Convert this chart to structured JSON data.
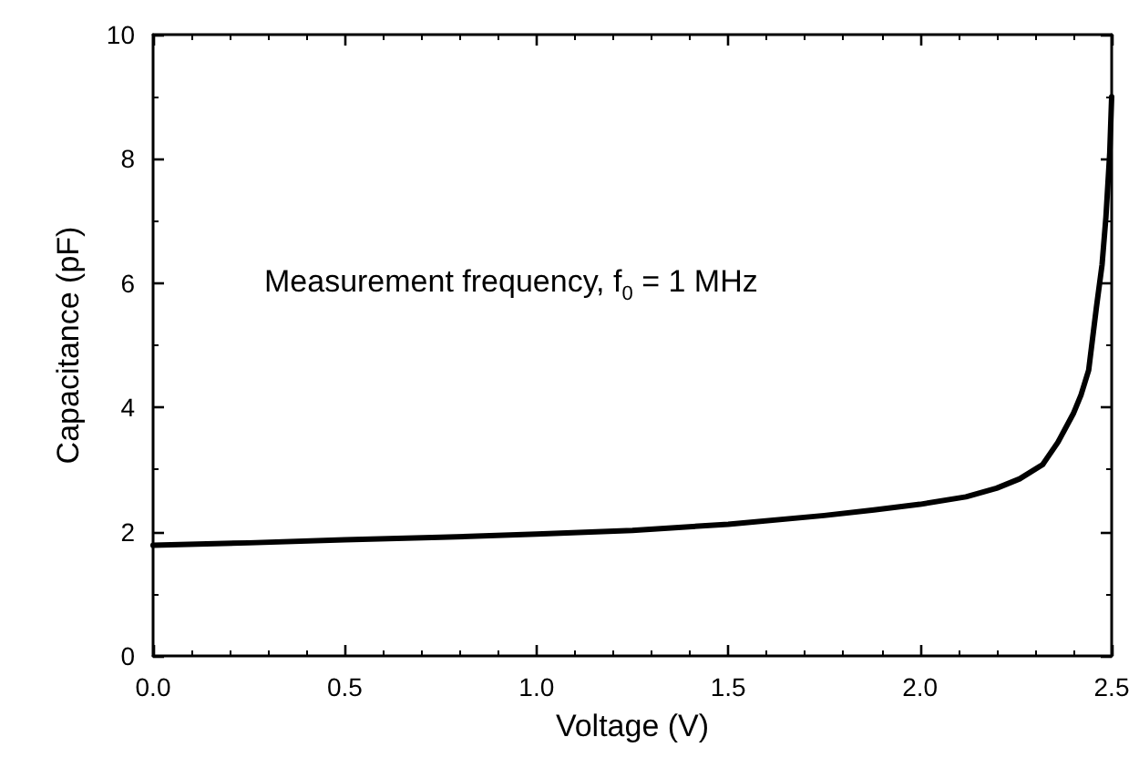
{
  "chart_data": {
    "type": "line",
    "xlabel": "Voltage (V)",
    "ylabel": "Capacitance (pF)",
    "annotations": [
      "Measurement frequency, f$_{0}$ = 1 MHz"
    ],
    "series": [
      {
        "color": "#000000",
        "x": [
          0,
          0.25,
          0.5,
          0.75,
          1.0,
          1.25,
          1.5,
          1.75,
          1.88,
          2.0,
          2.12,
          2.2,
          2.26,
          2.32,
          2.36,
          2.4,
          2.42,
          2.44,
          2.46,
          2.475,
          2.485,
          2.495,
          2.5
        ],
        "values": [
          1.78,
          1.82,
          1.87,
          1.91,
          1.96,
          2.02,
          2.12,
          2.26,
          2.35,
          2.44,
          2.56,
          2.7,
          2.85,
          3.08,
          3.44,
          3.9,
          4.2,
          4.6,
          5.6,
          6.3,
          7.06,
          8.1,
          9.0
        ]
      }
    ],
    "xlim": [
      0,
      2.5
    ],
    "ylim": [
      0,
      10
    ],
    "xticks": [
      {
        "value": 0,
        "label": "0.0"
      },
      0.5,
      {
        "value": 1,
        "label": "1.0"
      },
      1.5,
      {
        "value": 2,
        "label": "2.0"
      },
      2.5
    ],
    "yticks": [
      0,
      2,
      4,
      6,
      8,
      10
    ],
    "grid": false,
    "marker": "none",
    "line_style": "solid"
  }
}
